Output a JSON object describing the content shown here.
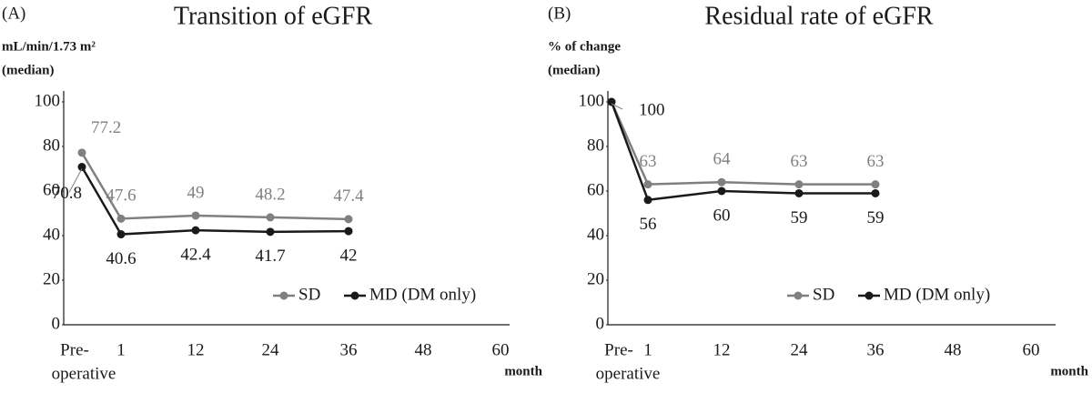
{
  "chart_data": [
    {
      "type": "line",
      "panel": "(A)",
      "title": "Transition of eGFR",
      "y_label": [
        "mL/min/1.73 m²",
        "(median)"
      ],
      "x_label": "month",
      "categories": [
        [
          "Pre-",
          "operative"
        ],
        "1",
        "12",
        "24",
        "36",
        "48",
        "60"
      ],
      "series": [
        {
          "name": "SD",
          "color": "#808080",
          "values": [
            77.2,
            47.6,
            49,
            48.2,
            47.4,
            null,
            null
          ]
        },
        {
          "name": "MD (DM only)",
          "color": "#1a1a1a",
          "values": [
            70.8,
            40.6,
            42.4,
            41.7,
            42,
            null,
            null
          ]
        }
      ],
      "ylim": [
        0,
        100
      ],
      "yticks": [
        0,
        20,
        40,
        60,
        80,
        100
      ],
      "legend": "lower right"
    },
    {
      "type": "line",
      "panel": "(B)",
      "title": "Residual rate of eGFR",
      "y_label": [
        "% of change",
        "(median)"
      ],
      "x_label": "month",
      "categories": [
        [
          "Pre-",
          "operative"
        ],
        "1",
        "12",
        "24",
        "36",
        "48",
        "60"
      ],
      "series": [
        {
          "name": "SD",
          "color": "#808080",
          "values": [
            100,
            63,
            64,
            63,
            63,
            null,
            null
          ],
          "value_labels": [
            null,
            "63",
            "64",
            "63",
            "63",
            null,
            null
          ]
        },
        {
          "name": "MD (DM only)",
          "color": "#1a1a1a",
          "values": [
            100,
            56,
            60,
            59,
            59,
            null,
            null
          ]
        }
      ],
      "ylim": [
        0,
        100
      ],
      "yticks": [
        0,
        20,
        40,
        60,
        80,
        100
      ],
      "legend": "lower right"
    }
  ]
}
